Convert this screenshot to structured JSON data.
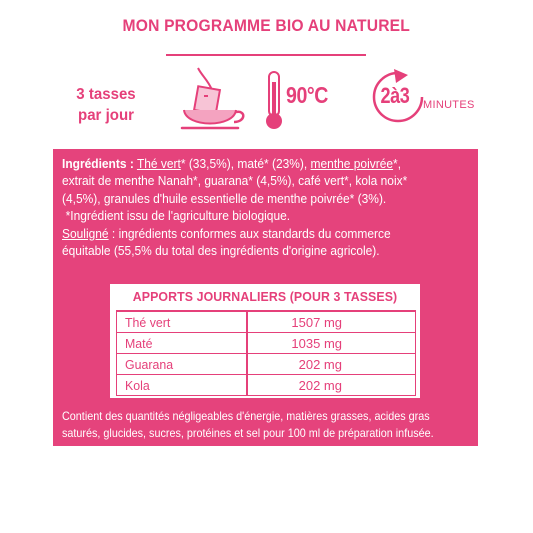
{
  "header": {
    "title": "MON PROGRAMME BIO AU NATUREL"
  },
  "dose": {
    "line1": "3 tasses",
    "line2": "par jour"
  },
  "temperature": "90°C",
  "duration": {
    "value": "2à3",
    "unit": "MINUTES"
  },
  "ingredients": {
    "label": "Ingrédients :",
    "the_vert": "Thé vert",
    "part1": "* (33,5%), maté* (23%), ",
    "menthe_poivree": "menthe poivrée",
    "part2": "*,",
    "line2": "extrait de menthe Nanah*, guarana* (4,5%), café vert*, kola noix*",
    "line3": "(4,5%), granules d'huile essentielle de menthe poivrée* (3%).",
    "organic_note": "*Ingrédient issu de l'agriculture biologique.",
    "fair_label": "Souligné",
    "fair_text": " : ingrédients conformes aux standards du commerce",
    "fair_text2": "équitable (55,5% du total des ingrédients d'origine agricole)."
  },
  "table": {
    "title": "APPORTS JOURNALIERS (POUR 3 TASSES)",
    "rows": [
      {
        "name": "Thé vert",
        "value": "1507 mg"
      },
      {
        "name": "Maté",
        "value": "1035 mg"
      },
      {
        "name": "Guarana",
        "value": "202 mg"
      },
      {
        "name": "Kola",
        "value": "202 mg"
      }
    ]
  },
  "note": {
    "line1": "Contient des quantités négligeables d'énergie, matières grasses, acides gras",
    "line2": "saturés, glucides, sucres, protéines et sel pour 100 ml de préparation infusée."
  },
  "colors": {
    "accent": "#e5407a",
    "panel": "#e5437c",
    "white": "#ffffff"
  },
  "icons": [
    "tea-cup-icon",
    "thermometer-icon",
    "cycle-arrow-icon"
  ]
}
